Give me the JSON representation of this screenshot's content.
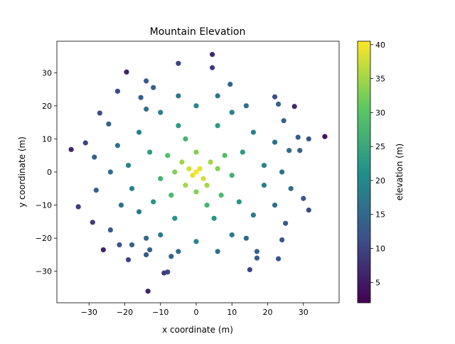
{
  "chart_data": {
    "type": "scatter",
    "title": "Mountain Elevation",
    "xlabel": "x coordinate (m)",
    "ylabel": "y coordinate (m)",
    "xlim": [
      -39,
      40
    ],
    "ylim": [
      -39.5,
      39.5
    ],
    "grid": false,
    "x_ticks": [
      -30,
      -20,
      -10,
      0,
      10,
      20,
      30
    ],
    "y_ticks": [
      -30,
      -20,
      -10,
      0,
      10,
      20,
      30
    ],
    "colorbar": {
      "label": "elevation (m)",
      "range": [
        2,
        40.5
      ],
      "ticks": [
        5,
        10,
        15,
        20,
        25,
        30,
        35,
        40
      ],
      "colormap": "viridis"
    },
    "points": [
      {
        "x": -35,
        "y": 6.8,
        "z": 6
      },
      {
        "x": -33,
        "y": -10.5,
        "z": 9
      },
      {
        "x": -31,
        "y": 8.8,
        "z": 10
      },
      {
        "x": -29,
        "y": -15.2,
        "z": 9
      },
      {
        "x": -28.5,
        "y": 4.5,
        "z": 14
      },
      {
        "x": -28,
        "y": -5.5,
        "z": 14
      },
      {
        "x": -27,
        "y": 17.8,
        "z": 11
      },
      {
        "x": -26,
        "y": -23.5,
        "z": 6
      },
      {
        "x": -24.5,
        "y": 14.5,
        "z": 14
      },
      {
        "x": -24,
        "y": -17.5,
        "z": 13
      },
      {
        "x": -22,
        "y": 24.4,
        "z": 11
      },
      {
        "x": -21.5,
        "y": -22,
        "z": 12
      },
      {
        "x": -19.5,
        "y": 30.2,
        "z": 6
      },
      {
        "x": -19,
        "y": -26.5,
        "z": 10
      },
      {
        "x": -18,
        "y": -22,
        "z": 14
      },
      {
        "x": -15.5,
        "y": 22.5,
        "z": 13
      },
      {
        "x": -14,
        "y": 27.5,
        "z": 13
      },
      {
        "x": -14,
        "y": -25,
        "z": 13
      },
      {
        "x": -13.5,
        "y": -36,
        "z": 6
      },
      {
        "x": -13,
        "y": -23.5,
        "z": 14
      },
      {
        "x": -12,
        "y": 25.5,
        "z": 14
      },
      {
        "x": -9,
        "y": -30.5,
        "z": 9
      },
      {
        "x": -8,
        "y": -30.2,
        "z": 10
      },
      {
        "x": -7,
        "y": -25.5,
        "z": 14
      },
      {
        "x": -5,
        "y": 32.8,
        "z": 10
      },
      {
        "x": 4.5,
        "y": 35.5,
        "z": 7
      },
      {
        "x": 4.5,
        "y": 31.5,
        "z": 9
      },
      {
        "x": 9.5,
        "y": 26.5,
        "z": 14
      },
      {
        "x": 15,
        "y": -29.5,
        "z": 10
      },
      {
        "x": 17,
        "y": -24,
        "z": 14
      },
      {
        "x": 17,
        "y": -26,
        "z": 13
      },
      {
        "x": 22,
        "y": 22.7,
        "z": 11
      },
      {
        "x": 23,
        "y": 20.5,
        "z": 14
      },
      {
        "x": 23,
        "y": -26.2,
        "z": 12
      },
      {
        "x": 24,
        "y": -20.5,
        "z": 12
      },
      {
        "x": 24.5,
        "y": 15.5,
        "z": 14
      },
      {
        "x": 25,
        "y": -15.5,
        "z": 13
      },
      {
        "x": 26,
        "y": 6.5,
        "z": 16
      },
      {
        "x": 26.5,
        "y": -5,
        "z": 16
      },
      {
        "x": 27.5,
        "y": 19.8,
        "z": 7
      },
      {
        "x": 28.5,
        "y": 10.5,
        "z": 13
      },
      {
        "x": 29,
        "y": 6.5,
        "z": 14
      },
      {
        "x": 30,
        "y": -8,
        "z": 12
      },
      {
        "x": 31.5,
        "y": 10,
        "z": 12
      },
      {
        "x": 31.5,
        "y": -11.5,
        "z": 11
      },
      {
        "x": 36,
        "y": 10.7,
        "z": 4
      },
      {
        "x": 0,
        "y": 0,
        "z": 40
      },
      {
        "x": 1,
        "y": 1,
        "z": 39
      },
      {
        "x": -1,
        "y": -1,
        "z": 39
      },
      {
        "x": -2,
        "y": 1,
        "z": 38
      },
      {
        "x": 2,
        "y": -2,
        "z": 38
      },
      {
        "x": -4,
        "y": 3,
        "z": 35
      },
      {
        "x": 4,
        "y": 3,
        "z": 35
      },
      {
        "x": -3,
        "y": -4,
        "z": 35
      },
      {
        "x": 3,
        "y": -4,
        "z": 35
      },
      {
        "x": -6,
        "y": 0,
        "z": 33
      },
      {
        "x": 6,
        "y": 1,
        "z": 33
      },
      {
        "x": 0,
        "y": 6,
        "z": 33
      },
      {
        "x": 0,
        "y": -6,
        "z": 33
      },
      {
        "x": -8,
        "y": 5,
        "z": 29
      },
      {
        "x": 8,
        "y": 5,
        "z": 29
      },
      {
        "x": -7,
        "y": -7,
        "z": 28
      },
      {
        "x": 7,
        "y": -7,
        "z": 28
      },
      {
        "x": -10,
        "y": -2,
        "z": 27
      },
      {
        "x": 10,
        "y": -1,
        "z": 27
      },
      {
        "x": -3,
        "y": 10,
        "z": 27
      },
      {
        "x": 3,
        "y": -10,
        "z": 27
      },
      {
        "x": -13,
        "y": 6,
        "z": 23
      },
      {
        "x": 13,
        "y": 6,
        "z": 23
      },
      {
        "x": -12,
        "y": -9,
        "z": 22
      },
      {
        "x": 12,
        "y": -9,
        "z": 22
      },
      {
        "x": -5,
        "y": 14,
        "z": 23
      },
      {
        "x": 6,
        "y": 14,
        "z": 23
      },
      {
        "x": -6,
        "y": -14,
        "z": 22
      },
      {
        "x": 5,
        "y": -14,
        "z": 22
      },
      {
        "x": -16,
        "y": 12,
        "z": 19
      },
      {
        "x": 16,
        "y": 12,
        "z": 19
      },
      {
        "x": -16,
        "y": -12,
        "z": 18
      },
      {
        "x": 16,
        "y": -13,
        "z": 18
      },
      {
        "x": -10,
        "y": 18,
        "z": 19
      },
      {
        "x": 10,
        "y": 18,
        "z": 19
      },
      {
        "x": -10,
        "y": -19,
        "z": 18
      },
      {
        "x": 10,
        "y": -19,
        "z": 18
      },
      {
        "x": -19,
        "y": 2,
        "z": 19
      },
      {
        "x": 19,
        "y": 2,
        "z": 19
      },
      {
        "x": -18,
        "y": -5,
        "z": 19
      },
      {
        "x": 19,
        "y": -4,
        "z": 19
      },
      {
        "x": 0,
        "y": 20,
        "z": 20
      },
      {
        "x": 0,
        "y": -21,
        "z": 19
      },
      {
        "x": -22,
        "y": 8,
        "z": 16
      },
      {
        "x": 22,
        "y": 9,
        "z": 16
      },
      {
        "x": -21,
        "y": -10,
        "z": 16
      },
      {
        "x": 22,
        "y": -10,
        "z": 16
      },
      {
        "x": -14,
        "y": 19,
        "z": 16
      },
      {
        "x": 14,
        "y": 20,
        "z": 16
      },
      {
        "x": -14,
        "y": -20,
        "z": 15
      },
      {
        "x": 14,
        "y": -20,
        "z": 15
      },
      {
        "x": -5,
        "y": 23,
        "z": 17
      },
      {
        "x": 6,
        "y": 23,
        "z": 17
      },
      {
        "x": -5,
        "y": -24,
        "z": 16
      },
      {
        "x": 6,
        "y": -24,
        "z": 16
      },
      {
        "x": -24,
        "y": 0,
        "z": 16
      },
      {
        "x": 24,
        "y": 0,
        "z": 16
      }
    ]
  }
}
